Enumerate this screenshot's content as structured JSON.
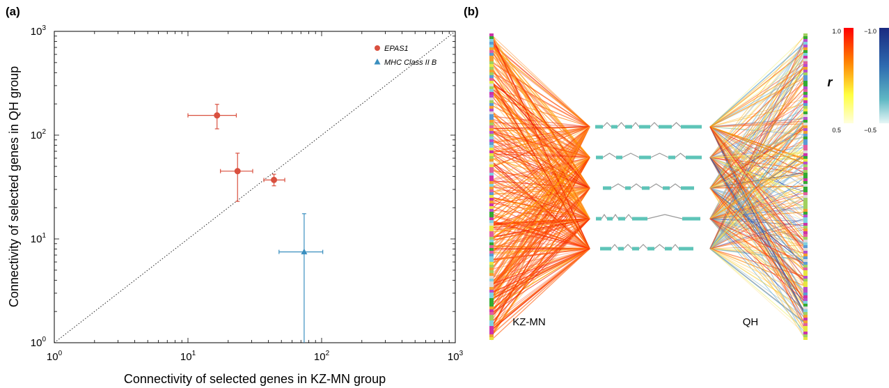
{
  "panels": {
    "a": {
      "label": "(a)"
    },
    "b": {
      "label": "(b)"
    }
  },
  "chart_data": [
    {
      "type": "scatter",
      "panel": "a",
      "xlabel": "Connectivity of selected genes in KZ-MN group",
      "ylabel": "Connectivity of selected genes in QH group",
      "xscale": "log",
      "yscale": "log",
      "xlim": [
        1,
        1000
      ],
      "ylim": [
        1,
        1000
      ],
      "xtick_labels": [
        {
          "value": 1,
          "base": "10",
          "exp": "0"
        },
        {
          "value": 10,
          "base": "10",
          "exp": "1"
        },
        {
          "value": 100,
          "base": "10",
          "exp": "2"
        },
        {
          "value": 1000,
          "base": "10",
          "exp": "3"
        }
      ],
      "ytick_labels": [
        {
          "value": 1,
          "base": "10",
          "exp": "0"
        },
        {
          "value": 10,
          "base": "10",
          "exp": "1"
        },
        {
          "value": 100,
          "base": "10",
          "exp": "2"
        },
        {
          "value": 1000,
          "base": "10",
          "exp": "3"
        }
      ],
      "reference_line": "y = x (dotted)",
      "grid": false,
      "legend_position": "top-right",
      "series": [
        {
          "name": "EPAS1",
          "marker": "circle",
          "color": "#d9503f",
          "points": [
            {
              "x": 16.5,
              "y": 155,
              "xerr": [
                10,
                23
              ],
              "yerr": [
                115,
                198
              ]
            },
            {
              "x": 23.5,
              "y": 45,
              "xerr": [
                17.5,
                30.5
              ],
              "yerr": [
                23,
                67
              ]
            },
            {
              "x": 44,
              "y": 37,
              "xerr": [
                37,
                53
              ],
              "yerr": [
                32.5,
                42
              ]
            }
          ]
        },
        {
          "name": "MHC Class II B",
          "marker": "triangle",
          "color": "#3a8fbf",
          "points": [
            {
              "x": 74,
              "y": 7.5,
              "xerr": [
                48,
                102
              ],
              "yerr": [
                1,
                17.5
              ]
            }
          ]
        }
      ]
    },
    {
      "type": "network",
      "panel": "b",
      "left_group": "KZ-MN",
      "right_group": "QH",
      "hub_gene_models": 5,
      "colorbar_label": "r",
      "colorbar_positive": {
        "max": "1.0",
        "min": "0.5",
        "colors": [
          "#ff0000",
          "#ff8000",
          "#ffff40",
          "#ffffdd"
        ]
      },
      "colorbar_negative": {
        "max": "−1.0",
        "min": "−0.5",
        "colors": [
          "#1a2a80",
          "#2e6bb0",
          "#5fb8c4",
          "#e6f6f6"
        ]
      }
    }
  ]
}
